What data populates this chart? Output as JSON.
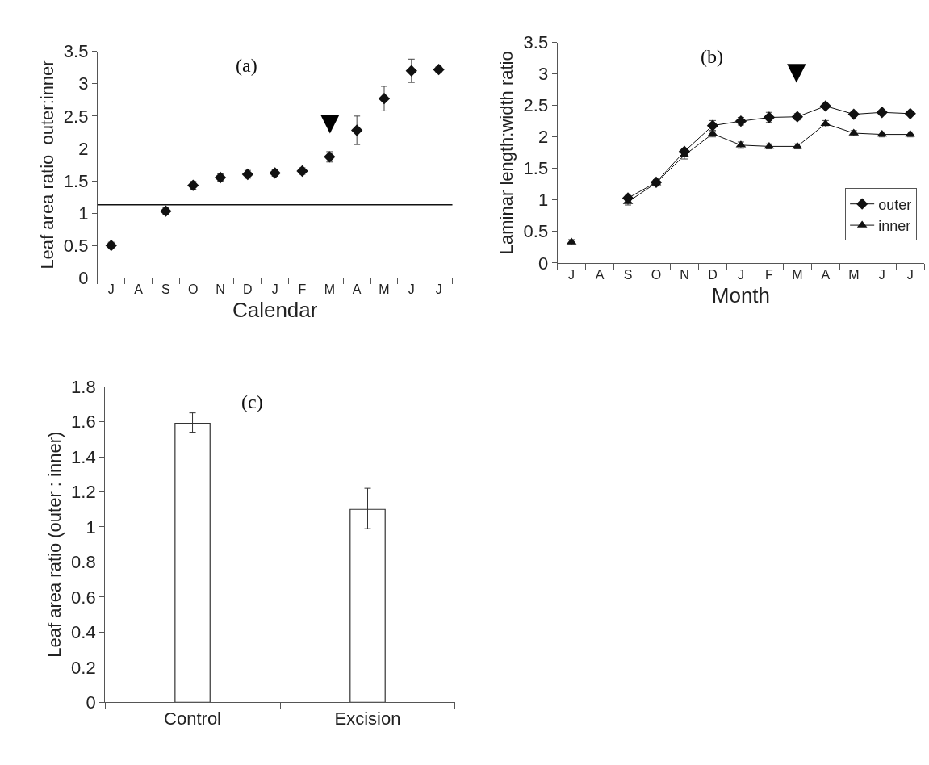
{
  "chart_data": [
    {
      "type": "scatter",
      "title": "(a)",
      "xlabel": "Calendar",
      "ylabel": "Leaf area ratio  outer:inner",
      "categories": [
        "J",
        "A",
        "S",
        "O",
        "N",
        "D",
        "J",
        "F",
        "M",
        "A",
        "M",
        "J",
        "J"
      ],
      "series": [
        {
          "color": "#111111",
          "values": [
            0.5,
            null,
            1.03,
            1.43,
            1.55,
            1.6,
            1.62,
            1.65,
            1.87,
            2.28,
            2.77,
            3.2,
            3.22
          ],
          "errors": [
            0.05,
            null,
            0.05,
            0.06,
            0.06,
            0.06,
            0.05,
            0.05,
            0.08,
            0.22,
            0.19,
            0.18,
            0.04
          ],
          "marker": "diamond"
        }
      ],
      "ylim": [
        0,
        3.5
      ],
      "yticks": [
        0,
        0.5,
        1,
        1.5,
        2,
        2.5,
        3,
        3.5
      ],
      "ref_lines": [
        {
          "axis": "y",
          "value": 1.13,
          "color": "#111111"
        }
      ],
      "annotations": [
        "▼"
      ]
    },
    {
      "type": "line",
      "title": "(b)",
      "xlabel": "Month",
      "ylabel": "Laminar length:width ratio",
      "categories": [
        "J",
        "A",
        "S",
        "O",
        "N",
        "D",
        "J",
        "F",
        "M",
        "A",
        "M",
        "J",
        "J"
      ],
      "series": [
        {
          "name": "outer",
          "color": "#111111",
          "marker": "diamond",
          "values": [
            null,
            null,
            1.03,
            1.28,
            1.77,
            2.18,
            2.25,
            2.31,
            2.32,
            2.49,
            2.36,
            2.39,
            2.37
          ],
          "errors": [
            null,
            null,
            0.04,
            0.04,
            0.05,
            0.08,
            0.06,
            0.08,
            0.05,
            0.03,
            0.03,
            0.03,
            0.03
          ]
        },
        {
          "name": "inner",
          "color": "#111111",
          "marker": "triangle",
          "values": [
            0.33,
            null,
            0.97,
            1.27,
            1.71,
            2.05,
            1.87,
            1.85,
            1.85,
            2.21,
            2.06,
            2.04,
            2.04
          ],
          "errors": [
            0.04,
            null,
            0.05,
            0.05,
            0.06,
            0.05,
            0.05,
            0.04,
            0.04,
            0.05,
            0.04,
            0.04,
            0.04
          ]
        }
      ],
      "ylim": [
        0,
        3.5
      ],
      "yticks": [
        0,
        0.5,
        1,
        1.5,
        2,
        2.5,
        3,
        3.5
      ],
      "annotations": [
        "▼"
      ],
      "legend": "bottom right",
      "line_style": "solid"
    },
    {
      "type": "bar",
      "title": "(c)",
      "ylabel": "Leaf area ratio (outer : inner)",
      "categories": [
        "Control",
        "Excision"
      ],
      "values": [
        1.59,
        1.1
      ],
      "errors": [
        [
          1.54,
          1.65
        ],
        [
          0.99,
          1.22
        ]
      ],
      "color": "#ffffff",
      "ylim": [
        0,
        1.8
      ],
      "yticks": [
        0,
        0.2,
        0.4,
        0.6,
        0.8,
        1,
        1.2,
        1.4,
        1.6,
        1.8
      ]
    }
  ]
}
